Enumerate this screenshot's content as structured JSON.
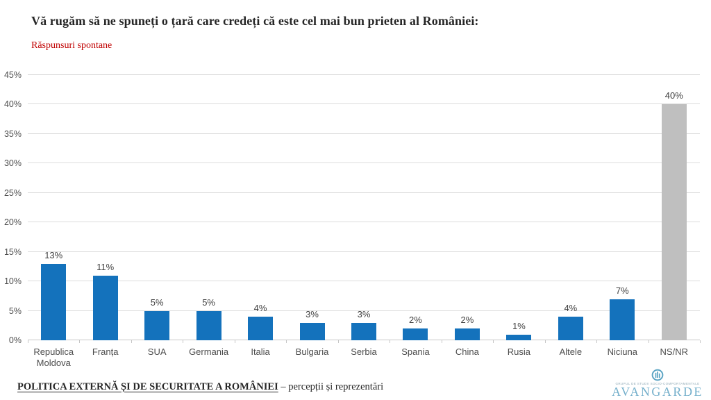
{
  "page": {
    "title": "Vă rugăm să ne spuneți o țară care credeți că este cel mai bun prieten al României:",
    "subtitle": "Răspunsuri spontane"
  },
  "chart_data": {
    "type": "bar",
    "title": "",
    "xlabel": "",
    "ylabel": "",
    "categories": [
      "Republica Moldova",
      "Franța",
      "SUA",
      "Germania",
      "Italia",
      "Bulgaria",
      "Serbia",
      "Spania",
      "China",
      "Rusia",
      "Altele",
      "Niciuna",
      "NS/NR"
    ],
    "values": [
      13,
      11,
      5,
      5,
      4,
      3,
      3,
      2,
      2,
      1,
      4,
      7,
      40
    ],
    "data_labels": [
      "13%",
      "11%",
      "5%",
      "5%",
      "4%",
      "3%",
      "3%",
      "2%",
      "2%",
      "1%",
      "4%",
      "7%",
      "40%"
    ],
    "bar_colors": [
      "#1472bc",
      "#1472bc",
      "#1472bc",
      "#1472bc",
      "#1472bc",
      "#1472bc",
      "#1472bc",
      "#1472bc",
      "#1472bc",
      "#1472bc",
      "#1472bc",
      "#1472bc",
      "#bfbfbf"
    ],
    "ylim": [
      0,
      45
    ],
    "yticks": [
      0,
      5,
      10,
      15,
      20,
      25,
      30,
      35,
      40,
      45
    ],
    "ytick_labels": [
      "0%",
      "5%",
      "10%",
      "15%",
      "20%",
      "25%",
      "30%",
      "35%",
      "40%",
      "45%"
    ],
    "grid": true,
    "legend": false,
    "colors": {
      "bar_blue": "#1472bc",
      "bar_gray": "#bfbfbf",
      "gridline": "#dcdcdc",
      "axis_text": "#4d4d4d",
      "subtitle_red": "#c00000"
    }
  },
  "footer": {
    "report_title": "POLITICA EXTERNĂ ȘI DE SECURITATE A ROMÂNIEI",
    "report_subtitle": "– percepții și reprezentări",
    "logo": {
      "name": "AVANGARDE",
      "tagline": "GRUPUL DE STUDII SOCIO-COMPORTAMENTALE",
      "color": "#74afcb"
    }
  }
}
